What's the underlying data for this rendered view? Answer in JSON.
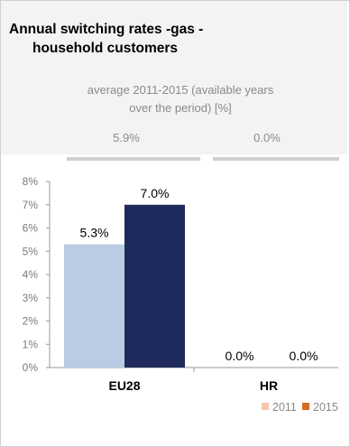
{
  "title_line1": "Annual switching rates -gas -",
  "title_line2": "household customers",
  "subtitle_line1": "average 2011-2015 (available years",
  "subtitle_line2": "over the period) [%]",
  "averages": [
    "5.9%",
    "0.0%"
  ],
  "colors": {
    "2011": "#b9cce4",
    "2015": "#1f2a5c",
    "legend2015": "#d46a24",
    "legend2011": "#f5c7ae"
  },
  "chart_data": {
    "type": "bar",
    "categories": [
      "EU28",
      "HR"
    ],
    "series": [
      {
        "name": "2011",
        "values": [
          5.3,
          0.0
        ]
      },
      {
        "name": "2015",
        "values": [
          7.0,
          0.0
        ]
      }
    ],
    "data_labels": [
      [
        "5.3%",
        "0.0%"
      ],
      [
        "7.0%",
        "0.0%"
      ]
    ],
    "ylim": [
      0,
      8
    ],
    "yticks": [
      "0%",
      "1%",
      "2%",
      "3%",
      "4%",
      "5%",
      "6%",
      "7%",
      "8%"
    ],
    "legend": [
      "2011",
      "2015"
    ],
    "legend_position": "bottom-right"
  }
}
